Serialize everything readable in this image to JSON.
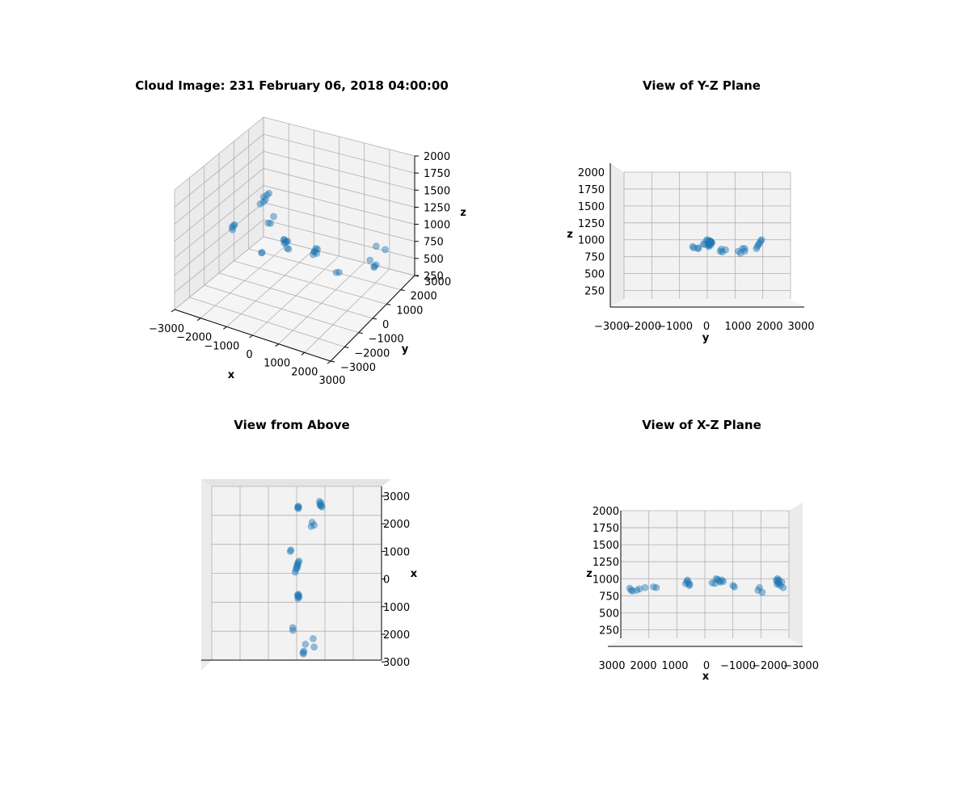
{
  "colors": {
    "point": "#1f77b4",
    "pane_back": "#f2f2f2",
    "pane_side": "#ebebeb",
    "pane_floor": "#f5f5f5",
    "grid": "#b0b0b0",
    "axis": "#000000"
  },
  "chart_data": [
    {
      "type": "scatter",
      "projection": "3d",
      "title": "Cloud Image: 231 February 06, 2018 04:00:00",
      "xlabel": "x",
      "ylabel": "y",
      "zlabel": "z",
      "xlim": [
        -3000,
        3000
      ],
      "ylim": [
        -3000,
        3000
      ],
      "zlim": [
        250,
        2000
      ],
      "xticks": [
        "−3000",
        "−2000",
        "−1000",
        "0",
        "1000",
        "2000",
        "3000"
      ],
      "yticks": [
        "3000",
        "2000",
        "1000",
        "0",
        "−1000",
        "−2000",
        "−3000"
      ],
      "zticks": [
        "2000",
        "1750",
        "1500",
        "1250",
        "1000",
        "750",
        "500",
        "250"
      ],
      "grid": true
    },
    {
      "type": "scatter",
      "projection": "3d",
      "view": "y-z plane",
      "title": "View of Y-Z Plane",
      "xlabel": "y",
      "ylabel": "z",
      "xticks": [
        "−3000",
        "−2000",
        "−1000",
        "0",
        "1000",
        "2000",
        "3000"
      ],
      "yticks": [
        "2000",
        "1750",
        "1500",
        "1250",
        "1000",
        "750",
        "500",
        "250"
      ],
      "grid": true
    },
    {
      "type": "scatter",
      "projection": "3d",
      "view": "top",
      "title": "View from Above",
      "ylabel": "x",
      "yticks": [
        "3000",
        "2000",
        "1000",
        "0",
        "1000",
        "2000",
        "3000"
      ],
      "grid": true
    },
    {
      "type": "scatter",
      "projection": "3d",
      "view": "x-z plane",
      "title": "View of X-Z Plane",
      "xlabel": "x",
      "ylabel": "z",
      "xticks": [
        "3000",
        "2000",
        "1000",
        "0",
        "−1000",
        "−2000",
        "−3000"
      ],
      "yticks": [
        "2000",
        "1750",
        "1500",
        "1250",
        "1000",
        "750",
        "500",
        "250"
      ],
      "grid": true
    }
  ],
  "points": [
    {
      "x": -2700,
      "y": 2500,
      "z": 950
    },
    {
      "x": -2600,
      "y": 2550,
      "z": 980
    },
    {
      "x": -2650,
      "y": 2400,
      "z": 900
    },
    {
      "x": -2750,
      "y": 2350,
      "z": 870
    },
    {
      "x": -2550,
      "y": 2600,
      "z": 1000
    },
    {
      "x": -2600,
      "y": 2450,
      "z": 930
    },
    {
      "x": -2550,
      "y": 200,
      "z": 960
    },
    {
      "x": -2580,
      "y": 150,
      "z": 940
    },
    {
      "x": -2500,
      "y": 180,
      "z": 980
    },
    {
      "x": -2530,
      "y": 100,
      "z": 920
    },
    {
      "x": -1900,
      "y": 1800,
      "z": 870
    },
    {
      "x": -2000,
      "y": 1600,
      "z": 800
    },
    {
      "x": -1850,
      "y": 1500,
      "z": 830
    },
    {
      "x": -1000,
      "y": -600,
      "z": 880
    },
    {
      "x": -950,
      "y": -650,
      "z": 900
    },
    {
      "x": -600,
      "y": 250,
      "z": 960
    },
    {
      "x": -550,
      "y": 150,
      "z": 980
    },
    {
      "x": -500,
      "y": 80,
      "z": 950
    },
    {
      "x": -400,
      "y": 0,
      "z": 990
    },
    {
      "x": -300,
      "y": -80,
      "z": 930
    },
    {
      "x": -200,
      "y": -150,
      "z": 940
    },
    {
      "x": -450,
      "y": 120,
      "z": 970
    },
    {
      "x": -350,
      "y": 50,
      "z": 1000
    },
    {
      "x": 600,
      "y": 200,
      "z": 920
    },
    {
      "x": 650,
      "y": 150,
      "z": 940
    },
    {
      "x": 700,
      "y": 250,
      "z": 960
    },
    {
      "x": 620,
      "y": 100,
      "z": 900
    },
    {
      "x": 680,
      "y": 180,
      "z": 980
    },
    {
      "x": 750,
      "y": 120,
      "z": 930
    },
    {
      "x": 1800,
      "y": -400,
      "z": 870
    },
    {
      "x": 1900,
      "y": -380,
      "z": 880
    },
    {
      "x": 2700,
      "y": 650,
      "z": 830
    },
    {
      "x": 2750,
      "y": 700,
      "z": 860
    },
    {
      "x": 2400,
      "y": 900,
      "z": 850
    },
    {
      "x": 2650,
      "y": 750,
      "z": 820
    },
    {
      "x": 2200,
      "y": 1700,
      "z": 870
    },
    {
      "x": 2500,
      "y": 1800,
      "z": 830
    }
  ]
}
